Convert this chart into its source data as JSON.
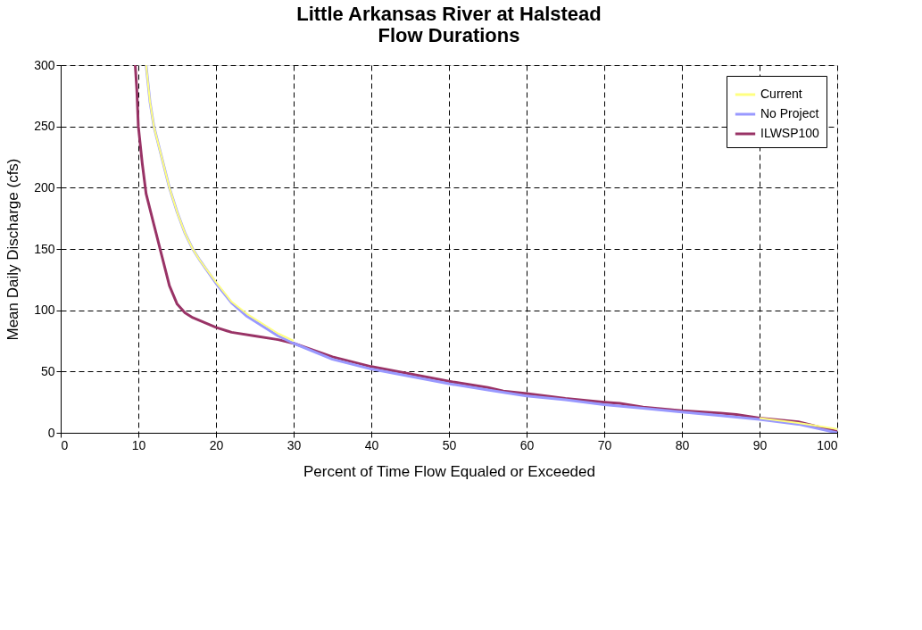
{
  "chart_data": {
    "type": "line",
    "title": [
      "Little Arkansas River at Halstead",
      "Flow Durations"
    ],
    "xlabel": "Percent of Time Flow Equaled or Exceeded",
    "ylabel": "Mean Daily Discharge (cfs)",
    "xlim": [
      0,
      100
    ],
    "xticks": [
      0,
      10,
      20,
      30,
      40,
      50,
      60,
      70,
      80,
      90,
      100
    ],
    "ylim": [
      0,
      300
    ],
    "yticks": [
      0,
      50,
      100,
      150,
      200,
      250,
      300
    ],
    "grid": true,
    "legend": "top right",
    "marker": "none",
    "line_style": "solid",
    "series": [
      {
        "name": "Current",
        "color": "#ffff80",
        "x": [
          11,
          11.5,
          12,
          13,
          14,
          15,
          16,
          17,
          18,
          20,
          22,
          24,
          26,
          28,
          30,
          35,
          40,
          45,
          50,
          55,
          60,
          65,
          70,
          75,
          80,
          85,
          90,
          95,
          100
        ],
        "values": [
          300,
          270,
          250,
          225,
          200,
          180,
          163,
          150,
          140,
          123,
          107,
          97,
          89,
          81,
          75,
          null,
          null,
          null,
          null,
          null,
          null,
          null,
          null,
          null,
          null,
          null,
          12,
          8,
          3
        ]
      },
      {
        "name": "No Project",
        "color": "#9999ff",
        "x": [
          11,
          11.5,
          12,
          13,
          14,
          15,
          16,
          17,
          18,
          20,
          22,
          24,
          26,
          28,
          30,
          35,
          40,
          45,
          50,
          55,
          60,
          65,
          70,
          75,
          80,
          85,
          90,
          95,
          100
        ],
        "values": [
          300,
          270,
          250,
          225,
          200,
          180,
          163,
          150,
          140,
          122,
          106,
          95,
          87,
          79,
          73,
          60,
          52,
          46,
          40,
          35,
          30,
          27,
          23,
          20,
          17,
          14,
          11,
          7,
          0
        ]
      },
      {
        "name": "ILWSP100",
        "color": "#993366",
        "x": [
          9.6,
          9.8,
          10,
          10.5,
          11,
          12,
          13,
          14,
          15,
          16,
          17,
          20,
          22,
          25,
          28,
          30,
          35,
          40,
          45,
          50,
          55,
          57,
          60,
          65,
          70,
          72,
          75,
          80,
          85,
          87,
          90,
          95,
          100
        ],
        "values": [
          300,
          280,
          250,
          220,
          195,
          170,
          145,
          120,
          105,
          98,
          94,
          86,
          82,
          79,
          76,
          73,
          62,
          54,
          48,
          42,
          37,
          34,
          32,
          28,
          25,
          24,
          21,
          18,
          16,
          15,
          12,
          9,
          1
        ]
      }
    ]
  }
}
